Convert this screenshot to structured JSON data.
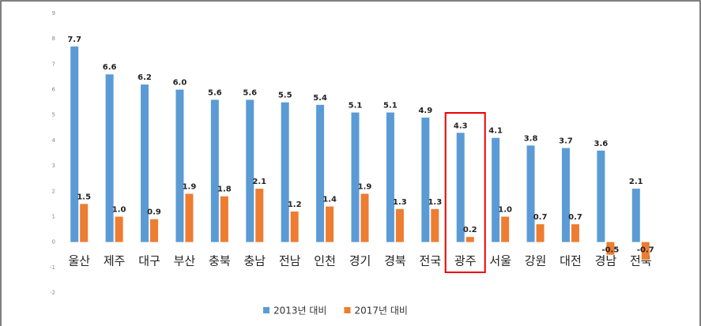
{
  "chart_data": {
    "type": "bar",
    "categories": [
      "울산",
      "제주",
      "대구",
      "부산",
      "충북",
      "충남",
      "전남",
      "인천",
      "경기",
      "경북",
      "전국",
      "광주",
      "서울",
      "강원",
      "대전",
      "경남",
      "전북"
    ],
    "series": [
      {
        "name": "2013년 대비",
        "color": "#5b9bd5",
        "values": [
          7.7,
          6.6,
          6.2,
          6.0,
          5.6,
          5.6,
          5.5,
          5.4,
          5.1,
          5.1,
          4.9,
          4.3,
          4.1,
          3.8,
          3.7,
          3.6,
          2.1
        ],
        "value_labels": [
          "7.7",
          "6.6",
          "6.2",
          "6.0",
          "5.6",
          "5.6",
          "5.5",
          "5.4",
          "5.1",
          "5.1",
          "4.9",
          "4.3",
          "4.1",
          "3.8",
          "3.7",
          "3.6",
          "2.1"
        ]
      },
      {
        "name": "2017년 대비",
        "color": "#ed7d31",
        "values": [
          1.5,
          1.0,
          0.9,
          1.9,
          1.8,
          2.1,
          1.2,
          1.4,
          1.9,
          1.3,
          1.3,
          0.2,
          1.0,
          0.7,
          0.7,
          -0.5,
          -0.7
        ],
        "value_labels": [
          "1.5",
          "1.0",
          "0.9",
          "1.9",
          "1.8",
          "2.1",
          "1.2",
          "1.4",
          "1.9",
          "1.3",
          "1.3",
          "0.2",
          "1.0",
          "0.7",
          "0.7",
          "-0.5",
          "-0.7"
        ]
      }
    ],
    "ylim": [
      -2,
      9
    ],
    "yticks": [
      -2,
      -1,
      0,
      1,
      2,
      3,
      4,
      5,
      6,
      7,
      8,
      9
    ],
    "grid": false,
    "legend": "bottom"
  }
}
